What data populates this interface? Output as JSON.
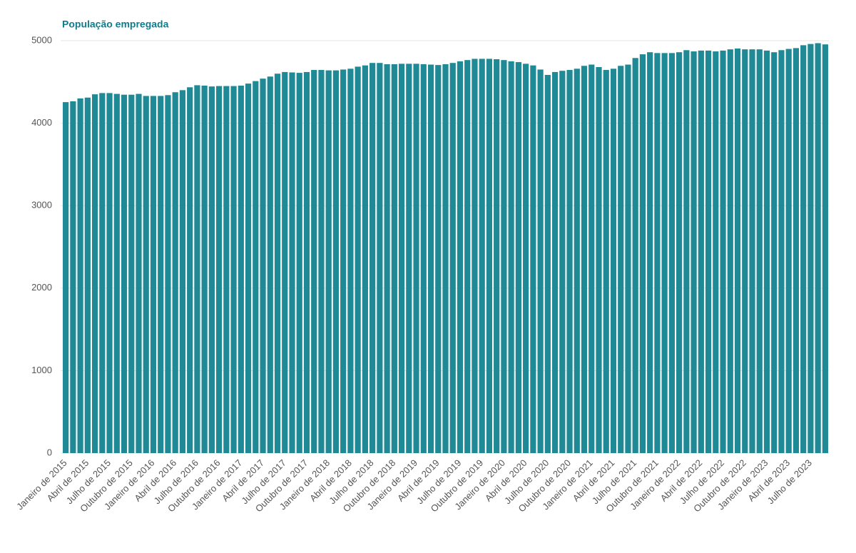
{
  "chart_data": {
    "type": "bar",
    "title": "População empregada",
    "categories": [
      "Janeiro de 2015",
      null,
      null,
      "Abril de 2015",
      null,
      null,
      "Julho de 2015",
      null,
      null,
      "Outubro de 2015",
      null,
      null,
      "Janeiro de 2016",
      null,
      null,
      "Abril de 2016",
      null,
      null,
      "Julho de 2016",
      null,
      null,
      "Outubro de 2016",
      null,
      null,
      "Janeiro de 2017",
      null,
      null,
      "Abril de 2017",
      null,
      null,
      "Julho de 2017",
      null,
      null,
      "Outubro de 2017",
      null,
      null,
      "Janeiro de 2018",
      null,
      null,
      "Abril de 2018",
      null,
      null,
      "Julho de 2018",
      null,
      null,
      "Outubro de 2018",
      null,
      null,
      "Janeiro de 2019",
      null,
      null,
      "Abril de 2019",
      null,
      null,
      "Julho de 2019",
      null,
      null,
      "Outubro de 2019",
      null,
      null,
      "Janeiro de 2020",
      null,
      null,
      "Abril de 2020",
      null,
      null,
      "Julho de 2020",
      null,
      null,
      "Outubro de 2020",
      null,
      null,
      "Janeiro de 2021",
      null,
      null,
      "Abril de 2021",
      null,
      null,
      "Julho de 2021",
      null,
      null,
      "Outubro de 2021",
      null,
      null,
      "Janeiro de 2022",
      null,
      null,
      "Abril de 2022",
      null,
      null,
      "Julho de 2022",
      null,
      null,
      "Outubro de 2022",
      null,
      null,
      "Janeiro de 2023",
      null,
      null,
      "Abril de 2023",
      null,
      null,
      "Julho de 2023",
      null,
      null
    ],
    "values": [
      4255,
      4265,
      4300,
      4310,
      4350,
      4365,
      4365,
      4355,
      4345,
      4345,
      4355,
      4330,
      4330,
      4330,
      4340,
      4375,
      4400,
      4435,
      4460,
      4455,
      4445,
      4450,
      4450,
      4450,
      4455,
      4480,
      4510,
      4540,
      4565,
      4600,
      4620,
      4615,
      4610,
      4620,
      4645,
      4645,
      4640,
      4640,
      4650,
      4660,
      4685,
      4700,
      4730,
      4730,
      4715,
      4715,
      4720,
      4720,
      4720,
      4715,
      4710,
      4705,
      4715,
      4730,
      4750,
      4765,
      4780,
      4780,
      4780,
      4775,
      4765,
      4750,
      4740,
      4720,
      4700,
      4650,
      4585,
      4620,
      4635,
      4645,
      4660,
      4695,
      4710,
      4680,
      4645,
      4660,
      4695,
      4710,
      4790,
      4835,
      4860,
      4850,
      4850,
      4850,
      4860,
      4885,
      4870,
      4880,
      4880,
      4870,
      4880,
      4895,
      4905,
      4895,
      4895,
      4895,
      4880,
      4860,
      4885,
      4900,
      4910,
      4945,
      4960,
      4970,
      4955
    ],
    "color": "#1f8a96",
    "ylim": [
      0,
      5000
    ],
    "yticks": [
      0,
      1000,
      2000,
      3000,
      4000,
      5000
    ],
    "grid": true
  }
}
